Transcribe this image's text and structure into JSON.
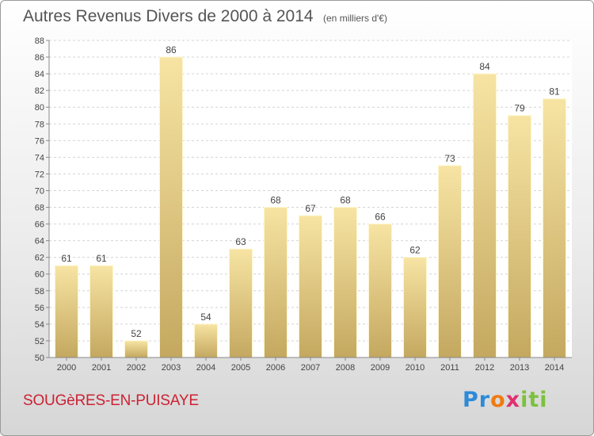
{
  "header": {
    "title": "Autres Revenus Divers de 2000 à 2014",
    "subtitle": "(en milliers d'€)"
  },
  "footer": {
    "commune": "SOUGèRES-EN-PUISAYE",
    "logo": {
      "parts": [
        "Pr",
        "o",
        "x",
        "iti"
      ]
    }
  },
  "colors": {
    "bar_top": "#f7e4a3",
    "bar_bottom": "#c4a860",
    "title": "#555555",
    "commune": "#cc2233"
  },
  "chart_data": {
    "type": "bar",
    "title": "Autres Revenus Divers de 2000 à 2014",
    "subtitle": "(en milliers d'€)",
    "categories": [
      "2000",
      "2001",
      "2002",
      "2003",
      "2004",
      "2005",
      "2006",
      "2007",
      "2008",
      "2009",
      "2010",
      "2011",
      "2012",
      "2013",
      "2014"
    ],
    "values": [
      61,
      61,
      52,
      86,
      54,
      63,
      68,
      67,
      68,
      66,
      62,
      73,
      84,
      79,
      81
    ],
    "ylim": [
      50,
      88
    ],
    "yticks": [
      50,
      52,
      54,
      56,
      58,
      60,
      62,
      64,
      66,
      68,
      70,
      72,
      74,
      76,
      78,
      80,
      82,
      84,
      86,
      88
    ],
    "grid": true,
    "data_labels": true,
    "legend": "none"
  }
}
